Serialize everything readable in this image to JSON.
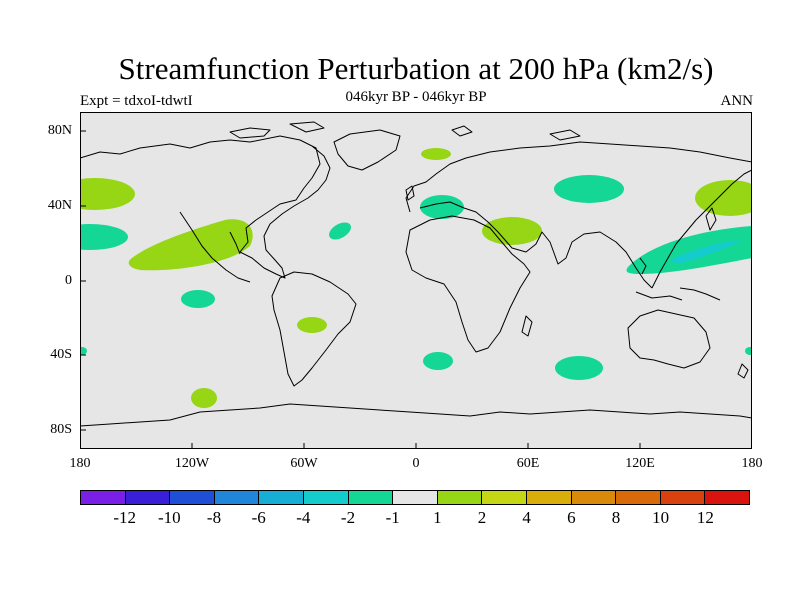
{
  "title": "Streamfunction Perturbation at 200 hPa (km2/s)",
  "subtitle": "046kyr BP - 046kyr BP",
  "left_label": "Expt = tdxoI-tdwtI",
  "right_label": "ANN",
  "lat_ticks": [
    "80N",
    "40N",
    "0",
    "40S",
    "80S"
  ],
  "lon_ticks": [
    "180",
    "120W",
    "60W",
    "0",
    "60E",
    "120E",
    "180"
  ],
  "colorbar": {
    "colors": [
      "#7a1fe6",
      "#3a1fd9",
      "#1f4fd6",
      "#1f86d9",
      "#17aed6",
      "#14cccc",
      "#14d695",
      "#e6e6e6",
      "#96d614",
      "#c4d614",
      "#d9ad0a",
      "#d98a0a",
      "#d96a0a",
      "#d9420f",
      "#d9140f"
    ],
    "labels": [
      "-12",
      "-10",
      "-8",
      "-6",
      "-4",
      "-2",
      "-1",
      "1",
      "2",
      "4",
      "6",
      "8",
      "10",
      "12"
    ]
  },
  "colors": {
    "background": "#e6e6e6",
    "positive_1": "#96d614",
    "negative_1": "#14d695",
    "negative_2": "#14cccc",
    "strong_neg": "#17aed6",
    "coast": "#000000"
  }
}
